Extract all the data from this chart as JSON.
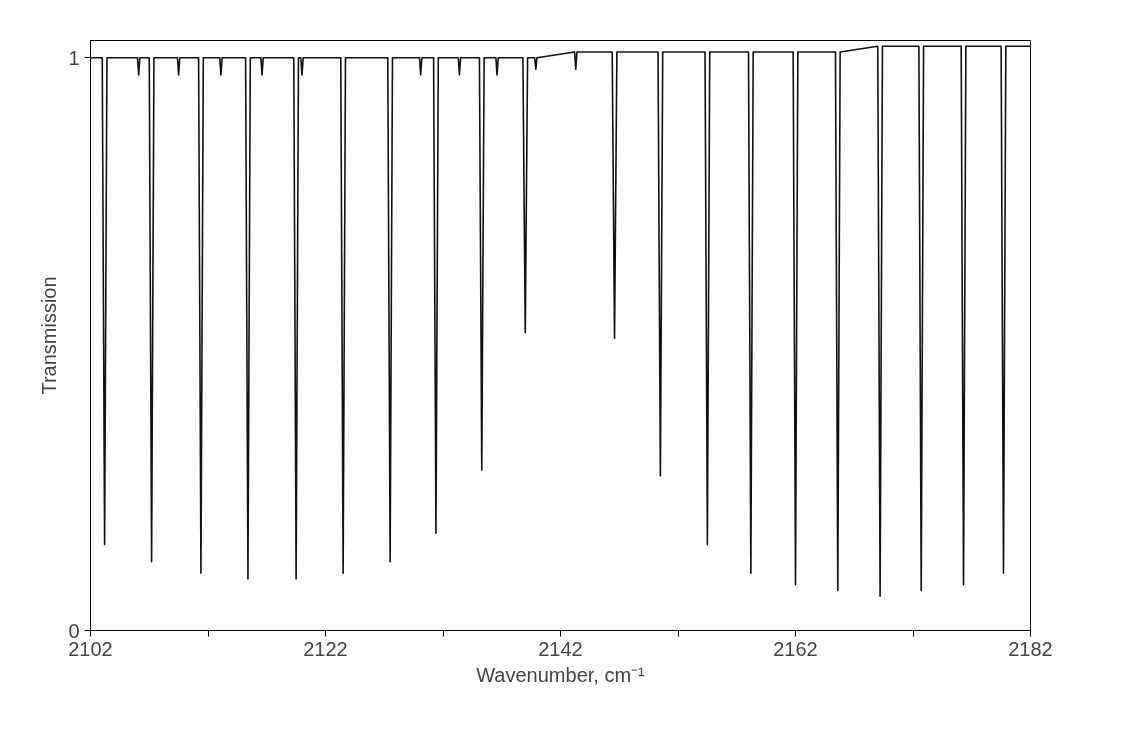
{
  "chart_data": {
    "type": "line",
    "xlabel": "Wavenumber, cm⁻¹",
    "ylabel": "Transmission",
    "xlim": [
      2102,
      2182
    ],
    "ylim": [
      0,
      1.03
    ],
    "xticks": [
      2102,
      {
        "value": 2112,
        "label": null
      },
      2122,
      {
        "value": 2132,
        "label": null
      },
      2142,
      {
        "value": 2152,
        "label": null
      },
      2162,
      {
        "value": 2172,
        "label": null
      },
      2182
    ],
    "yticks": [
      0,
      1
    ],
    "grid": false,
    "marker": "none",
    "line_style": "solid",
    "series": [
      {
        "color": "#111111",
        "x": [
          2102,
          2103.0,
          2103.2,
          2103.4,
          2106.0,
          2106.1,
          2106.2,
          2107.0,
          2107.2,
          2107.4,
          2109.4,
          2109.5,
          2109.6,
          2111.2,
          2111.4,
          2111.6,
          2113.0,
          2113.1,
          2113.2,
          2115.2,
          2115.4,
          2115.6,
          2116.5,
          2116.6,
          2116.7,
          2119.3,
          2119.5,
          2119.7,
          2119.9,
          2120.0,
          2120.1,
          2123.3,
          2123.5,
          2123.7,
          2127.3,
          2127.5,
          2127.7,
          2130.0,
          2130.1,
          2130.2,
          2131.2,
          2131.4,
          2131.6,
          2133.3,
          2133.4,
          2133.5,
          2135.1,
          2135.3,
          2135.5,
          2136.5,
          2136.6,
          2136.7,
          2138.8,
          2139.0,
          2139.2,
          2139.8,
          2139.9,
          2140.0,
          2143.2,
          2143.3,
          2143.4,
          2146.4,
          2146.6,
          2146.8,
          2150.3,
          2150.5,
          2150.7,
          2154.3,
          2154.5,
          2154.7,
          2158.0,
          2158.2,
          2158.4,
          2161.8,
          2162.0,
          2162.2,
          2165.4,
          2165.6,
          2165.8,
          2169.0,
          2169.2,
          2169.4,
          2172.5,
          2172.7,
          2172.9,
          2176.1,
          2176.3,
          2176.5,
          2179.5,
          2179.7,
          2179.9,
          2182
        ],
        "values": [
          1.0,
          1.0,
          0.15,
          1.0,
          1.0,
          0.97,
          1.0,
          1.0,
          0.12,
          1.0,
          1.0,
          0.97,
          1.0,
          1.0,
          0.1,
          1.0,
          1.0,
          0.97,
          1.0,
          1.0,
          0.09,
          1.0,
          1.0,
          0.97,
          1.0,
          1.0,
          0.09,
          1.0,
          1.0,
          0.97,
          1.0,
          1.0,
          0.1,
          1.0,
          1.0,
          0.12,
          1.0,
          1.0,
          0.97,
          1.0,
          1.0,
          0.17,
          1.0,
          1.0,
          0.97,
          1.0,
          1.0,
          0.28,
          1.0,
          1.0,
          0.97,
          1.0,
          1.0,
          0.52,
          1.0,
          1.0,
          0.98,
          1.0,
          1.01,
          0.98,
          1.01,
          1.01,
          0.51,
          1.01,
          1.01,
          0.27,
          1.01,
          1.01,
          0.15,
          1.01,
          1.01,
          0.1,
          1.01,
          1.01,
          0.08,
          1.01,
          1.01,
          0.07,
          1.01,
          1.02,
          0.06,
          1.02,
          1.02,
          0.07,
          1.02,
          1.02,
          0.08,
          1.02,
          1.02,
          0.1,
          1.02,
          1.02
        ]
      }
    ]
  }
}
